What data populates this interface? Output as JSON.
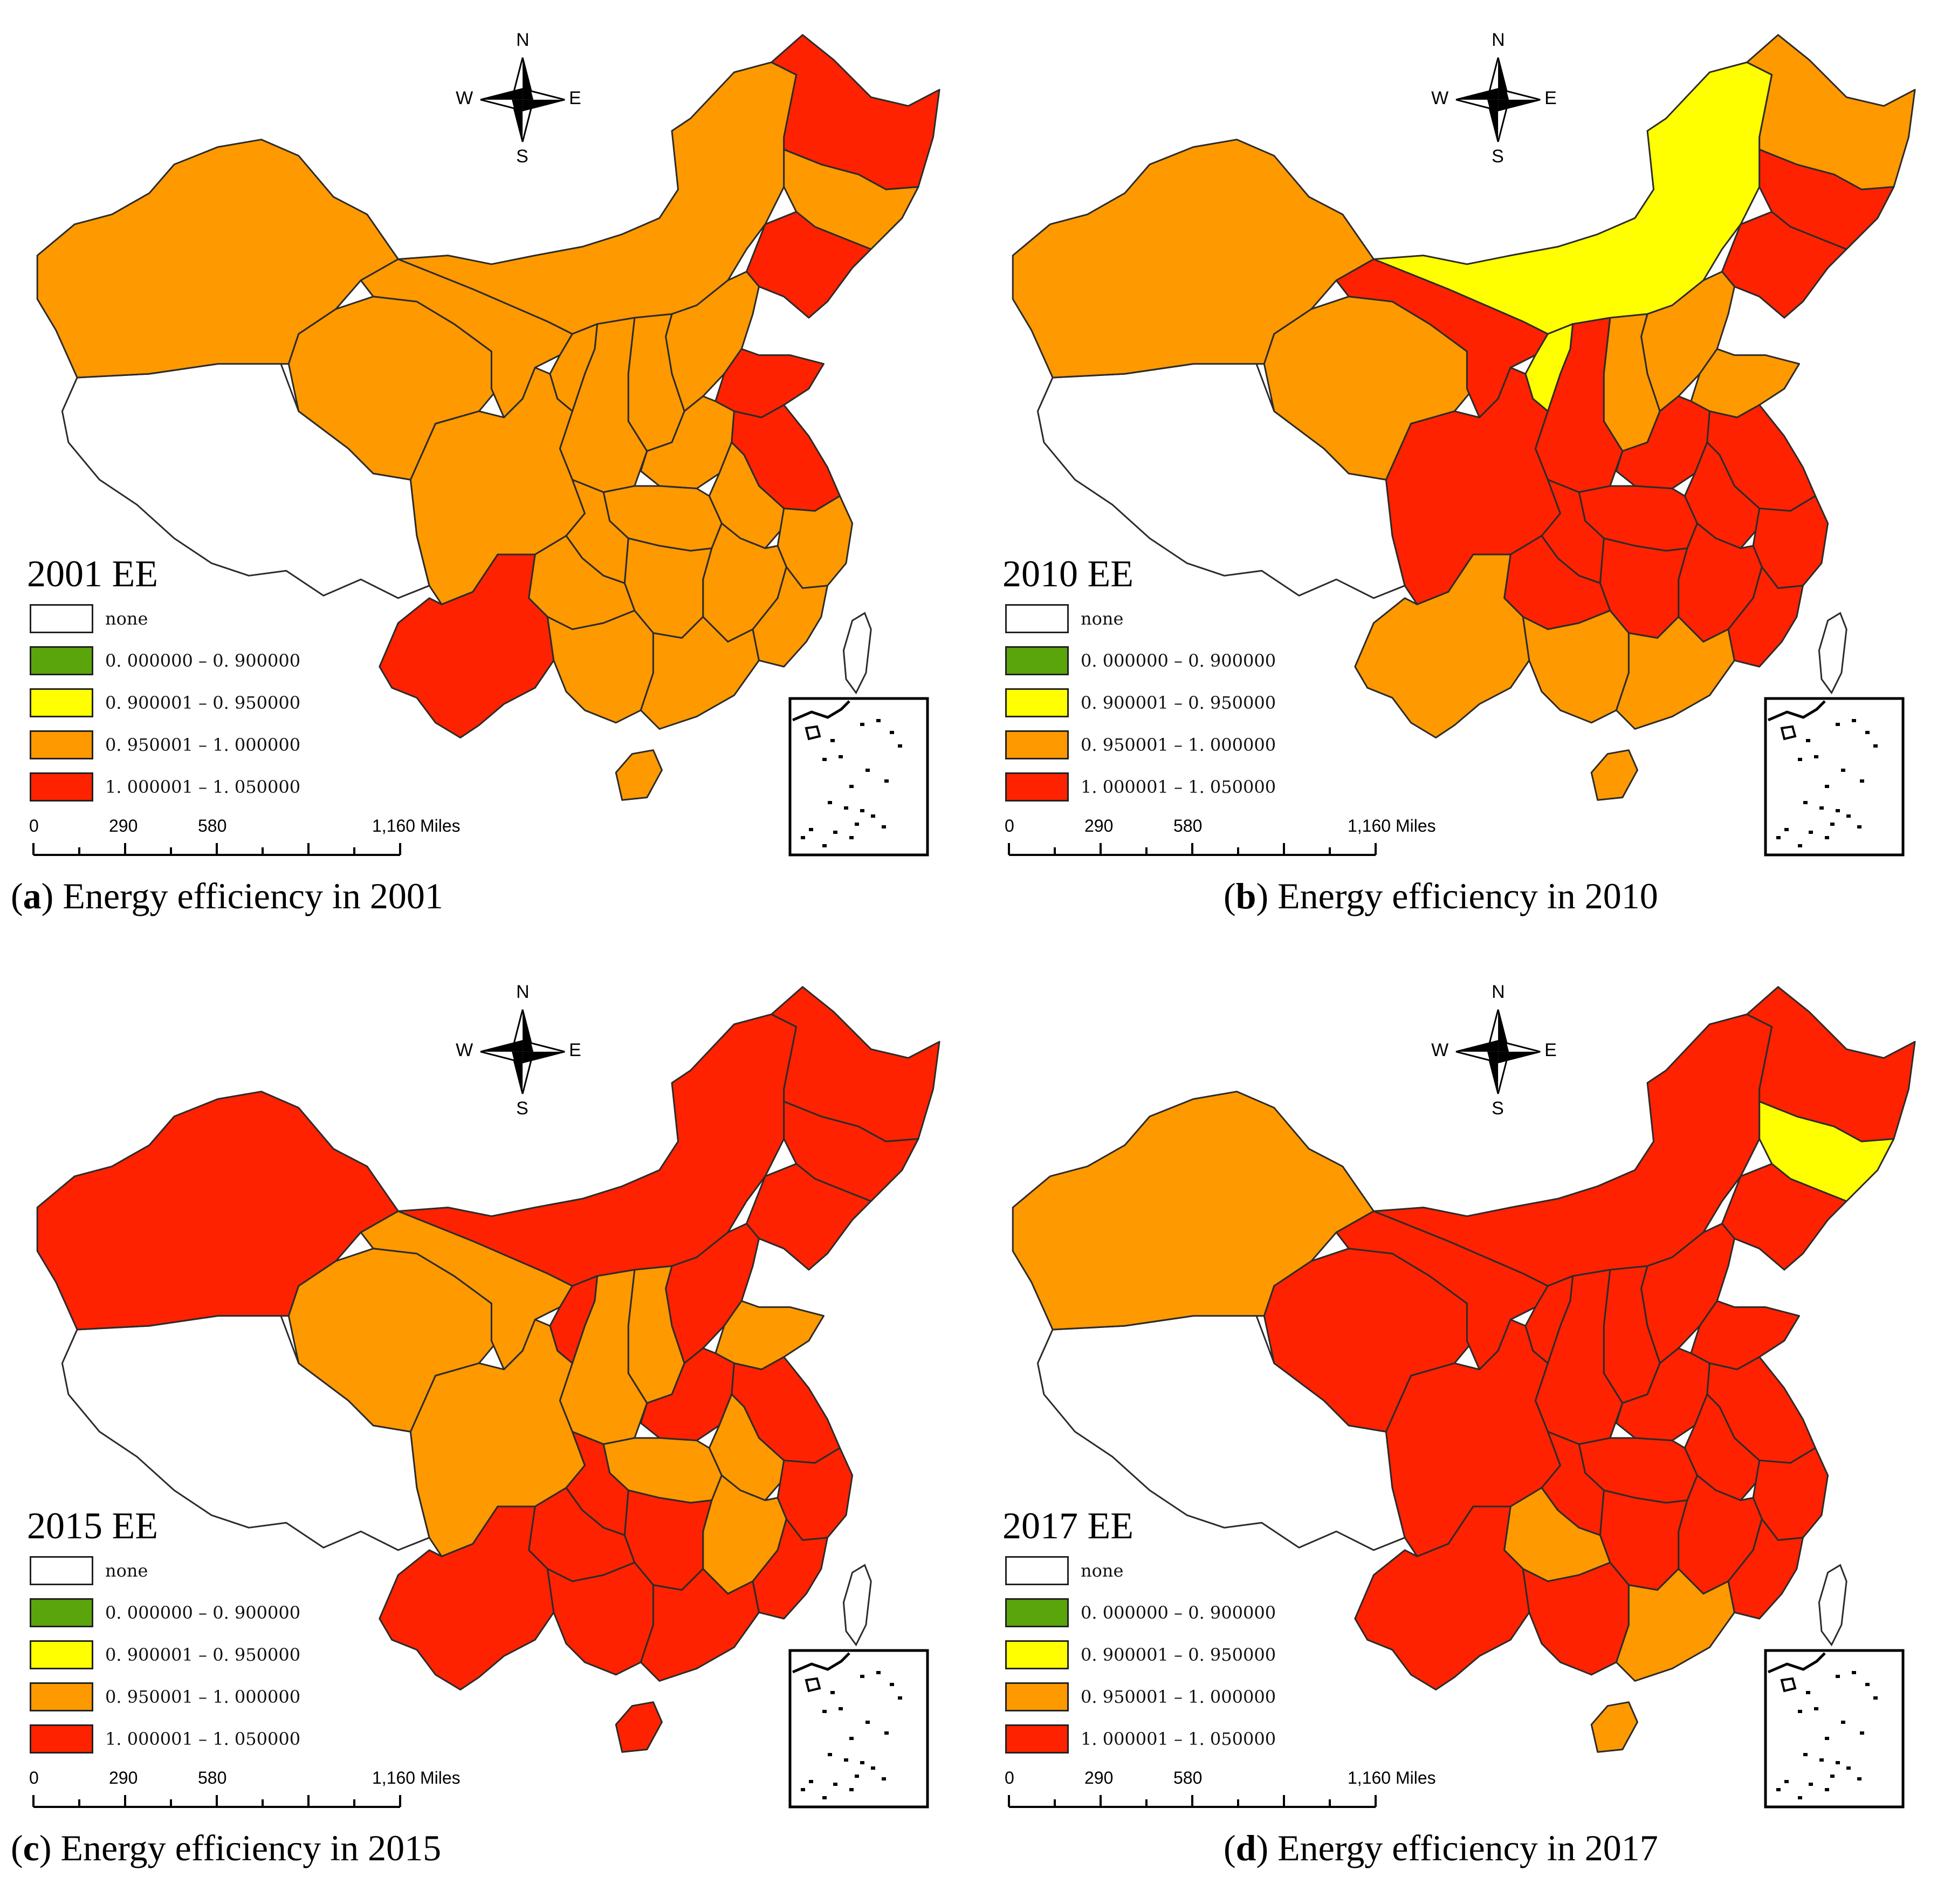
{
  "colors": {
    "none": "#ffffff",
    "green": "#5aa50b",
    "yellow": "#ffff00",
    "orange": "#ff9900",
    "red": "#ff2200",
    "outline": "#2b2b2b"
  },
  "legend": {
    "items": [
      {
        "label": "none",
        "color_key": "none"
      },
      {
        "label": "0. 000000 – 0. 900000",
        "color_key": "green"
      },
      {
        "label": "0. 900001 – 0. 950000",
        "color_key": "yellow"
      },
      {
        "label": "0. 950001 – 1. 000000",
        "color_key": "orange"
      },
      {
        "label": "1. 000001 – 1. 050000",
        "color_key": "red"
      }
    ]
  },
  "compass": {
    "n": "N",
    "s": "S",
    "e": "E",
    "w": "W"
  },
  "scale": {
    "ticks": [
      "0",
      "290",
      "580",
      "1,160 Miles"
    ]
  },
  "panels": [
    {
      "id": "a",
      "title": "2001 EE",
      "caption_letter": "a",
      "caption_text": "Energy efficiency in 2001",
      "regions": {
        "tibet": "none",
        "xinjiang": "orange",
        "qinghai": "orange",
        "gansu": "orange",
        "inner_mongolia": "orange",
        "heilongjiang": "red",
        "jilin": "orange",
        "liaoning": "red",
        "beijing": "red",
        "hebei": "orange",
        "shanxi": "orange",
        "shaanxi": "orange",
        "ningxia": "orange",
        "shandong": "red",
        "henan": "orange",
        "jiangsu": "red",
        "anhui": "orange",
        "zhejiang": "orange",
        "jiangxi": "orange",
        "hubei": "orange",
        "hunan": "orange",
        "sichuan": "orange",
        "chongqing": "orange",
        "guizhou": "orange",
        "yunnan": "red",
        "guangxi": "orange",
        "guangdong": "orange",
        "fujian": "orange",
        "hainan": "orange"
      }
    },
    {
      "id": "b",
      "title": "2010 EE",
      "caption_letter": "b",
      "caption_text": "Energy efficiency in 2010",
      "regions": {
        "tibet": "none",
        "xinjiang": "orange",
        "qinghai": "orange",
        "gansu": "red",
        "inner_mongolia": "yellow",
        "heilongjiang": "orange",
        "jilin": "red",
        "liaoning": "red",
        "beijing": "red",
        "hebei": "orange",
        "shanxi": "orange",
        "shaanxi": "red",
        "ningxia": "yellow",
        "shandong": "orange",
        "henan": "red",
        "jiangsu": "red",
        "anhui": "red",
        "zhejiang": "red",
        "jiangxi": "red",
        "hubei": "red",
        "hunan": "red",
        "sichuan": "red",
        "chongqing": "red",
        "guizhou": "red",
        "yunnan": "orange",
        "guangxi": "orange",
        "guangdong": "orange",
        "fujian": "red",
        "hainan": "orange"
      }
    },
    {
      "id": "c",
      "title": "2015 EE",
      "caption_letter": "c",
      "caption_text": "Energy efficiency in 2015",
      "regions": {
        "tibet": "none",
        "xinjiang": "red",
        "qinghai": "orange",
        "gansu": "orange",
        "inner_mongolia": "red",
        "heilongjiang": "red",
        "jilin": "red",
        "liaoning": "red",
        "beijing": "red",
        "hebei": "red",
        "shanxi": "orange",
        "shaanxi": "orange",
        "ningxia": "red",
        "shandong": "orange",
        "henan": "red",
        "jiangsu": "red",
        "anhui": "orange",
        "zhejiang": "red",
        "jiangxi": "orange",
        "hubei": "orange",
        "hunan": "red",
        "sichuan": "orange",
        "chongqing": "red",
        "guizhou": "red",
        "yunnan": "red",
        "guangxi": "red",
        "guangdong": "red",
        "fujian": "red",
        "hainan": "red"
      }
    },
    {
      "id": "d",
      "title": "2017 EE",
      "caption_letter": "d",
      "caption_text": "Energy efficiency in 2017",
      "regions": {
        "tibet": "none",
        "xinjiang": "orange",
        "qinghai": "red",
        "gansu": "red",
        "inner_mongolia": "red",
        "heilongjiang": "red",
        "jilin": "yellow",
        "liaoning": "red",
        "beijing": "red",
        "hebei": "red",
        "shanxi": "red",
        "shaanxi": "red",
        "ningxia": "red",
        "shandong": "red",
        "henan": "red",
        "jiangsu": "red",
        "anhui": "red",
        "zhejiang": "red",
        "jiangxi": "red",
        "hubei": "red",
        "hunan": "red",
        "sichuan": "red",
        "chongqing": "red",
        "guizhou": "orange",
        "yunnan": "red",
        "guangxi": "red",
        "guangdong": "orange",
        "fujian": "red",
        "hainan": "orange"
      }
    }
  ]
}
